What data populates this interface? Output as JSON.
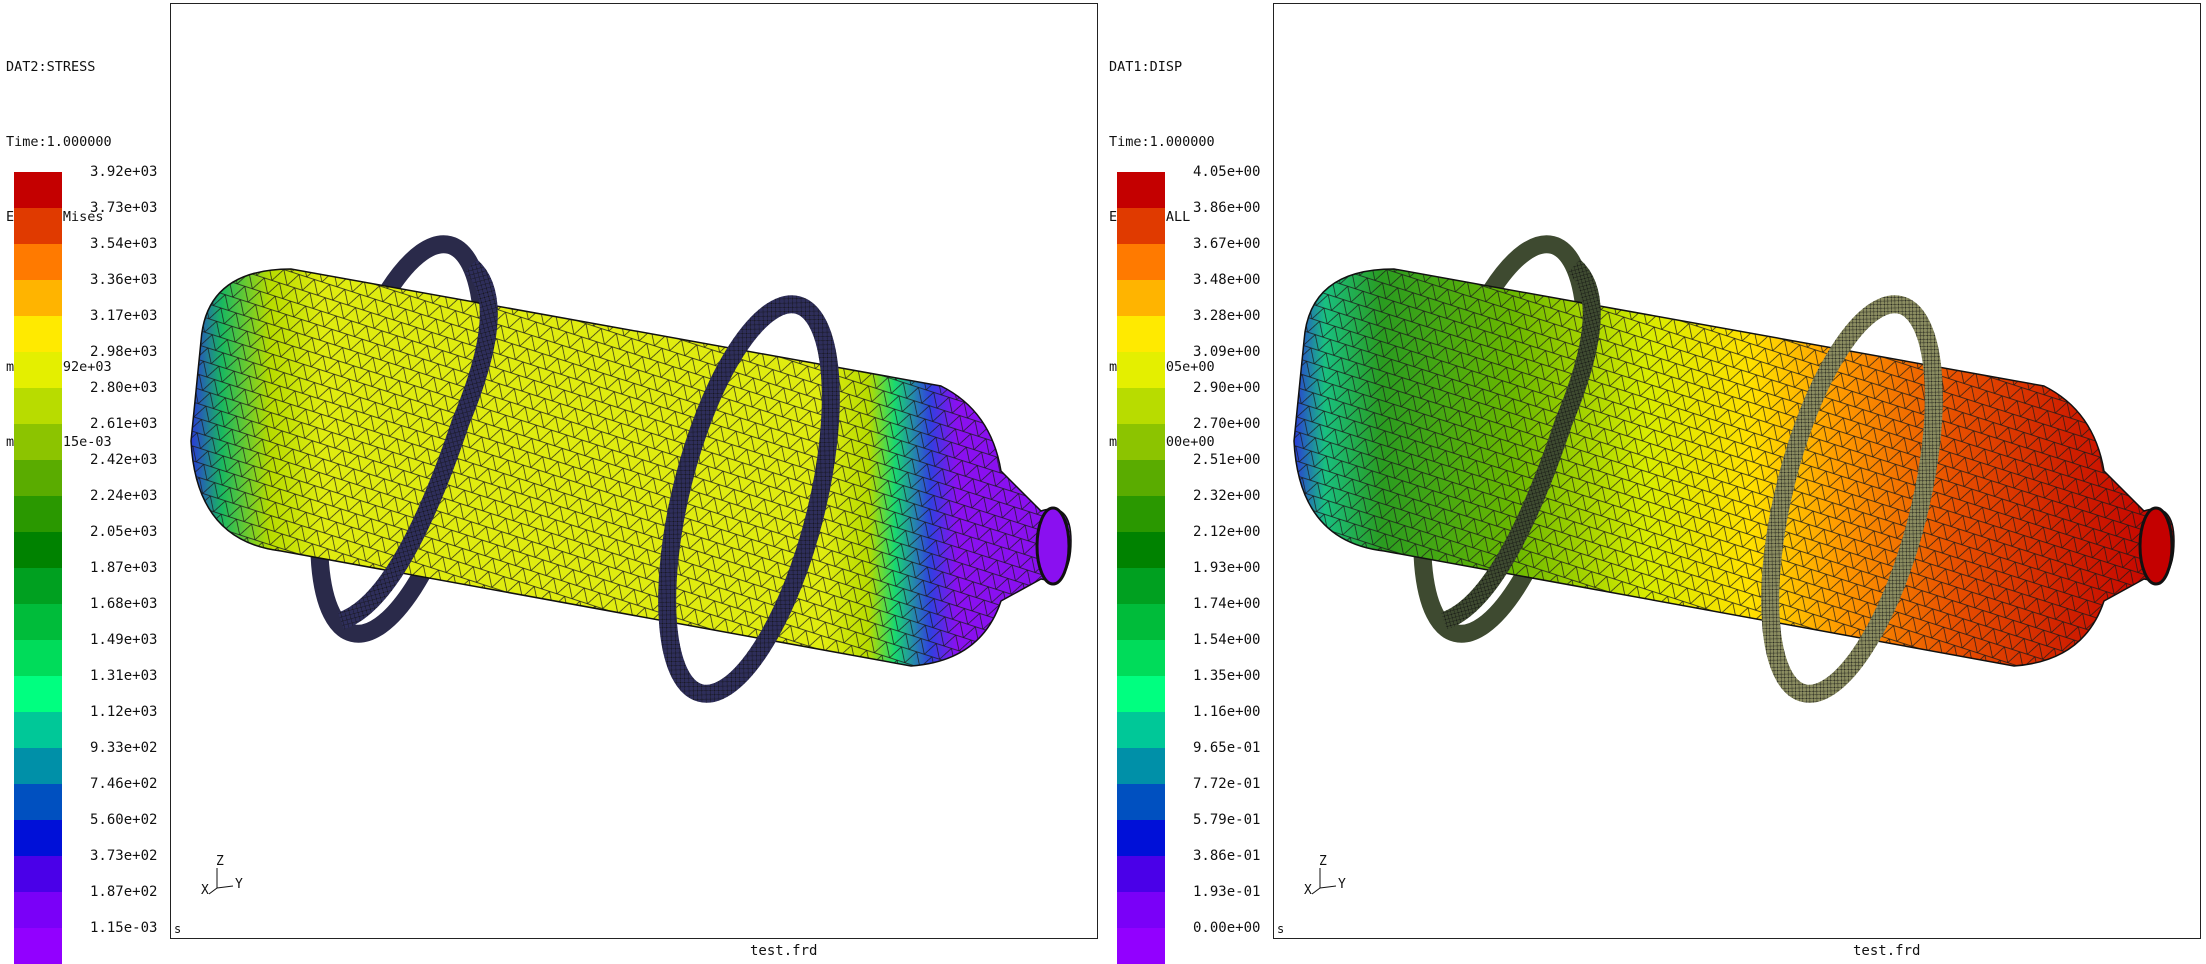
{
  "panels": [
    {
      "id": "left",
      "dataset": "DAT2:STRESS",
      "time": "Time:1.000000",
      "entity": "Entity:Mises",
      "max": "max: 3.92e+03",
      "min": "min: 1.15e-03",
      "legend": [
        "3.92e+03",
        "3.73e+03",
        "3.54e+03",
        "3.36e+03",
        "3.17e+03",
        "2.98e+03",
        "2.80e+03",
        "2.61e+03",
        "2.42e+03",
        "2.24e+03",
        "2.05e+03",
        "1.87e+03",
        "1.68e+03",
        "1.49e+03",
        "1.31e+03",
        "1.12e+03",
        "9.33e+02",
        "7.46e+02",
        "5.60e+02",
        "3.73e+02",
        "1.87e+02",
        "1.15e-03"
      ],
      "filename": "test.frd"
    },
    {
      "id": "right",
      "dataset": "DAT1:DISP",
      "time": "Time:1.000000",
      "entity": "Entity:ALL",
      "max": "max: 4.05e+00",
      "min": "min: 0.00e+00",
      "legend": [
        "4.05e+00",
        "3.86e+00",
        "3.67e+00",
        "3.48e+00",
        "3.28e+00",
        "3.09e+00",
        "2.90e+00",
        "2.70e+00",
        "2.51e+00",
        "2.32e+00",
        "2.12e+00",
        "1.93e+00",
        "1.74e+00",
        "1.54e+00",
        "1.35e+00",
        "1.16e+00",
        "9.65e-01",
        "7.72e-01",
        "5.79e-01",
        "3.86e-01",
        "1.93e-01",
        "0.00e+00"
      ],
      "filename": "test.frd"
    }
  ],
  "legend_colors": [
    "#c40000",
    "#e03a00",
    "#ff7a00",
    "#ffb400",
    "#ffea00",
    "#e4ef00",
    "#b8dc00",
    "#8cc400",
    "#5aac00",
    "#2a9800",
    "#008200",
    "#00a020",
    "#00bc3a",
    "#00dc5a",
    "#00ff80",
    "#00c898",
    "#0090a8",
    "#0050c0",
    "#0010d8",
    "#4a00e8",
    "#7a00f8",
    "#9200ff"
  ],
  "axis_labels": {
    "z": "Z",
    "y": "Y",
    "x": "X"
  },
  "corner_label": "s"
}
